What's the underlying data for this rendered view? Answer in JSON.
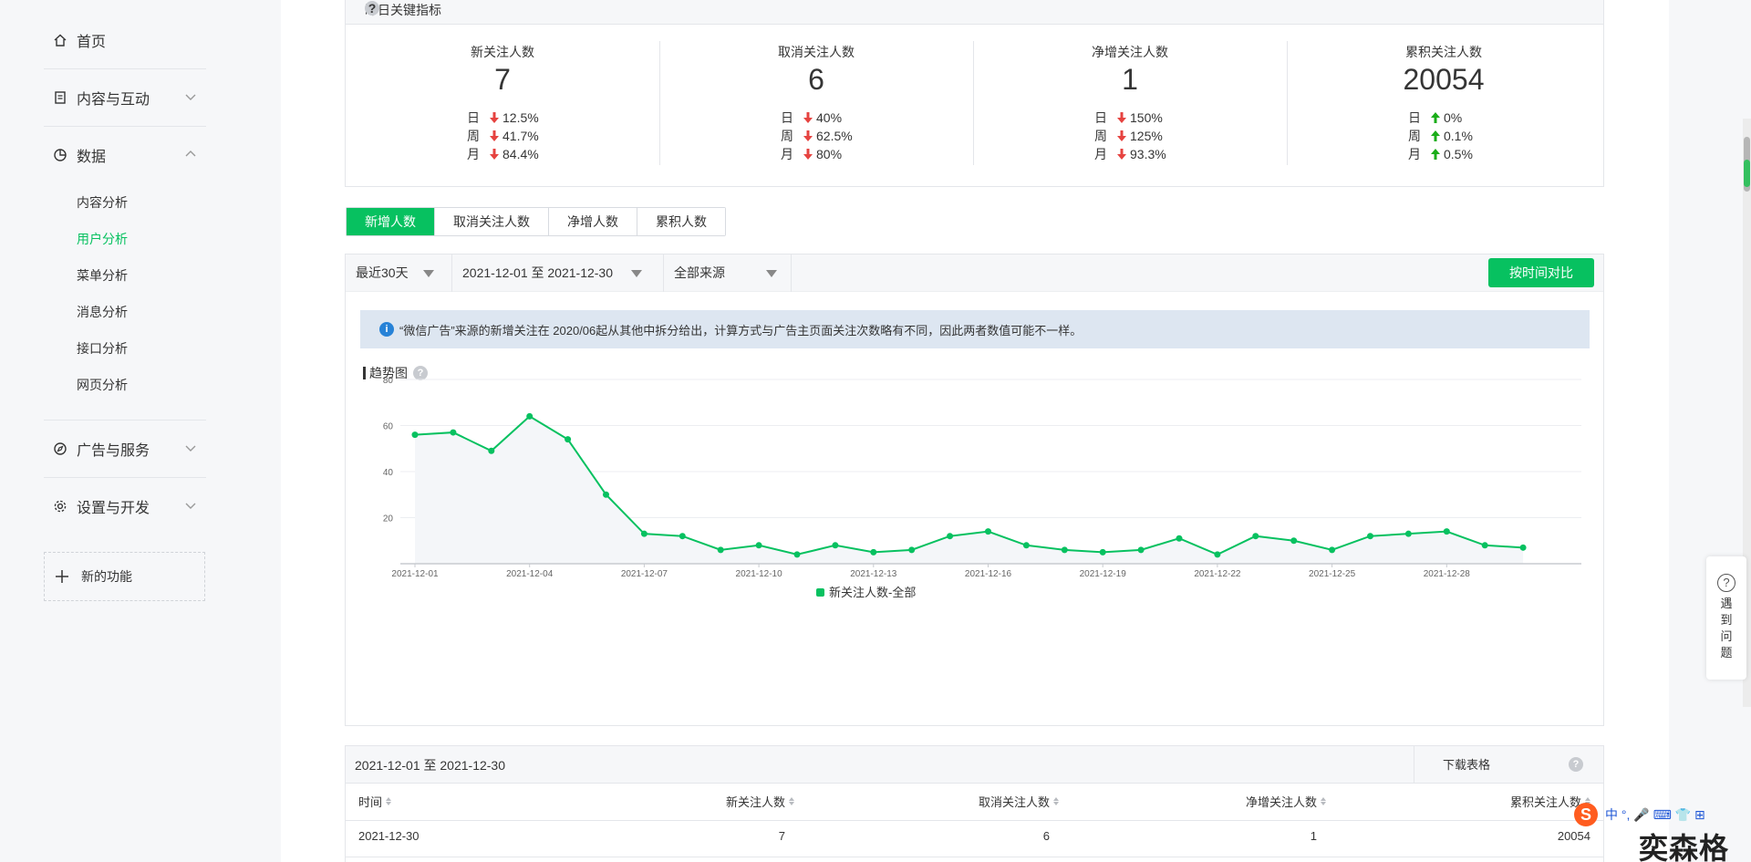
{
  "sidebar": {
    "home": "首页",
    "content_interact": "内容与互动",
    "data": "数据",
    "sub_items": [
      "内容分析",
      "用户分析",
      "菜单分析",
      "消息分析",
      "接口分析",
      "网页分析"
    ],
    "ads": "广告与服务",
    "settings": "设置与开发",
    "new_func": "新的功能"
  },
  "kpi": {
    "header": "昨日关键指标",
    "period_labels": [
      "日",
      "周",
      "月"
    ],
    "cols": [
      {
        "label": "新关注人数",
        "value": "7",
        "changes": [
          "12.5%",
          "41.7%",
          "84.4%"
        ],
        "dirs": [
          "down",
          "down",
          "down"
        ]
      },
      {
        "label": "取消关注人数",
        "value": "6",
        "changes": [
          "40%",
          "62.5%",
          "80%"
        ],
        "dirs": [
          "down",
          "down",
          "down"
        ]
      },
      {
        "label": "净增关注人数",
        "value": "1",
        "changes": [
          "150%",
          "125%",
          "93.3%"
        ],
        "dirs": [
          "down",
          "down",
          "down"
        ]
      },
      {
        "label": "累积关注人数",
        "value": "20054",
        "changes": [
          "0%",
          "0.1%",
          "0.5%"
        ],
        "dirs": [
          "up",
          "up",
          "up"
        ]
      }
    ]
  },
  "tabs": [
    "新增人数",
    "取消关注人数",
    "净增人数",
    "累积人数"
  ],
  "filters": {
    "range": "最近30天",
    "dates": "2021-12-01 至 2021-12-30",
    "source": "全部来源",
    "compare_btn": "按时间对比"
  },
  "info_text": "“微信广告”来源的新增关注在 2020/06起从其他中拆分给出，计算方式与广告主页面关注次数略有不同，因此两者数值可能不一样。",
  "trend_title": "趋势图",
  "chart_data": {
    "type": "area",
    "x": [
      "2021-12-01",
      "2021-12-02",
      "2021-12-03",
      "2021-12-04",
      "2021-12-05",
      "2021-12-06",
      "2021-12-07",
      "2021-12-08",
      "2021-12-09",
      "2021-12-10",
      "2021-12-11",
      "2021-12-12",
      "2021-12-13",
      "2021-12-14",
      "2021-12-15",
      "2021-12-16",
      "2021-12-17",
      "2021-12-18",
      "2021-12-19",
      "2021-12-20",
      "2021-12-21",
      "2021-12-22",
      "2021-12-23",
      "2021-12-24",
      "2021-12-25",
      "2021-12-26",
      "2021-12-27",
      "2021-12-28",
      "2021-12-29",
      "2021-12-30"
    ],
    "x_ticks": [
      "2021-12-01",
      "2021-12-04",
      "2021-12-07",
      "2021-12-10",
      "2021-12-13",
      "2021-12-16",
      "2021-12-19",
      "2021-12-22",
      "2021-12-25",
      "2021-12-28"
    ],
    "series": [
      {
        "name": "新关注人数-全部",
        "values": [
          56,
          57,
          49,
          64,
          54,
          30,
          13,
          12,
          6,
          8,
          4,
          8,
          5,
          6,
          12,
          14,
          8,
          6,
          5,
          6,
          11,
          4,
          12,
          10,
          6,
          12,
          13,
          14,
          8,
          7
        ]
      }
    ],
    "y_ticks": [
      20,
      40,
      60,
      80
    ],
    "ylim": [
      0,
      80
    ],
    "color": "#07c160",
    "legend": "bottom"
  },
  "table": {
    "range": "2021-12-01 至 2021-12-30",
    "download": "下载表格",
    "columns": [
      "时间",
      "新关注人数",
      "取消关注人数",
      "净增关注人数",
      "累积关注人数"
    ],
    "rows": [
      [
        "2021-12-30",
        "7",
        "6",
        "1",
        "20054"
      ]
    ]
  },
  "help_float": "遇到问题",
  "ime": {
    "s": "S",
    "text": "中 °, 🎤 ⌨ 👕 ⊞"
  },
  "watermark": "奕森格"
}
